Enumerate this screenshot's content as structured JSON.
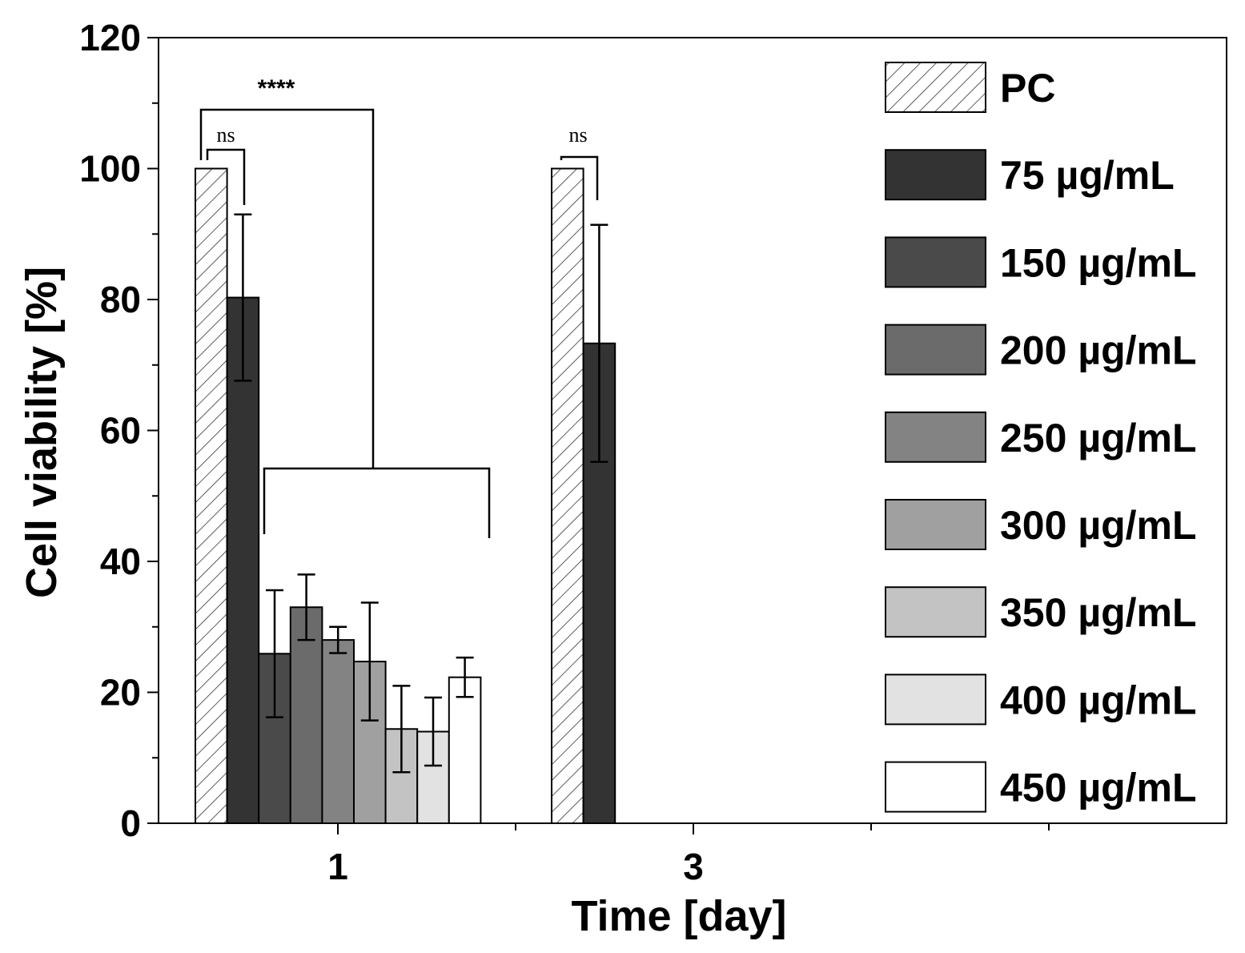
{
  "chart_data": {
    "type": "bar",
    "title": "",
    "xlabel": "Time [day]",
    "ylabel": "Cell viability [%]",
    "ylim": [
      0,
      120
    ],
    "yticks": [
      "0",
      "20",
      "40",
      "60",
      "80",
      "100",
      "120"
    ],
    "categories": [
      "1",
      "3"
    ],
    "series": [
      {
        "name": "PC",
        "color": "#ffffff",
        "pattern": "hatch",
        "values": [
          100,
          100
        ],
        "errors": [
          0,
          0
        ]
      },
      {
        "name": "75 µg/mL",
        "color": "#333333",
        "values": [
          80.3,
          73.3
        ],
        "errors": [
          12.7,
          18.1
        ]
      },
      {
        "name": "150 µg/mL",
        "color": "#4a4a4a",
        "values": [
          25.9,
          null
        ],
        "errors": [
          9.7,
          null
        ]
      },
      {
        "name": "200 µg/mL",
        "color": "#6b6b6b",
        "values": [
          33.0,
          null
        ],
        "errors": [
          5.0,
          null
        ]
      },
      {
        "name": "250 µg/mL",
        "color": "#838383",
        "values": [
          28.0,
          null
        ],
        "errors": [
          2.0,
          null
        ]
      },
      {
        "name": "300 µg/mL",
        "color": "#a0a0a0",
        "values": [
          24.7,
          null
        ],
        "errors": [
          9.0,
          null
        ]
      },
      {
        "name": "350 µg/mL",
        "color": "#c3c3c3",
        "values": [
          14.4,
          null
        ],
        "errors": [
          6.6,
          null
        ]
      },
      {
        "name": "400 µg/mL",
        "color": "#e2e2e2",
        "values": [
          14.0,
          null
        ],
        "errors": [
          5.2,
          null
        ]
      },
      {
        "name": "450 µg/mL",
        "color": "#ffffff",
        "values": [
          22.3,
          null
        ],
        "errors": [
          3.0,
          null
        ]
      }
    ],
    "legend_position": "top-right",
    "annotations": {
      "day1_pc_vs_75": "ns",
      "day1_pc_vs_rest": "****",
      "day3_pc_vs_75": "ns"
    }
  }
}
